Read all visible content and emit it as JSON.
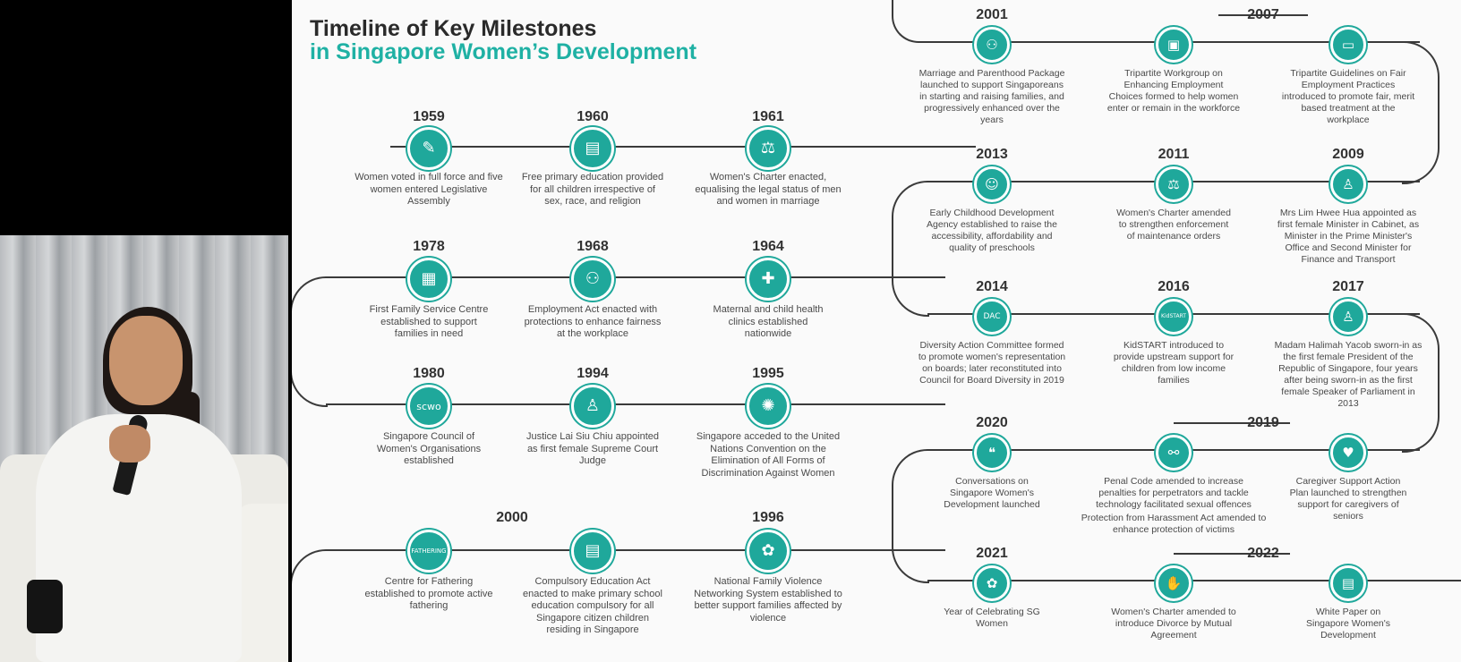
{
  "title": {
    "line1": "Timeline of Key Milestones",
    "line2": "in Singapore Women’s Development",
    "accent": "#1fb1a4"
  },
  "milestones": [
    {
      "year": "1959",
      "icon": "voting-icon",
      "glyph": "✎",
      "desc": "Women voted in full force and five women entered Legislative Assembly"
    },
    {
      "year": "1960",
      "icon": "book-icon",
      "glyph": "▤",
      "desc": "Free primary education provided for all children irrespective of sex, race, and religion"
    },
    {
      "year": "1961",
      "icon": "scales-icon",
      "glyph": "⚖",
      "desc": "Women's Charter enacted, equalising the legal status of men and women in marriage"
    },
    {
      "year": "1978",
      "icon": "building-icon",
      "glyph": "▦",
      "desc": "First Family Service Centre established to support families in need"
    },
    {
      "year": "1968",
      "icon": "workers-icon",
      "glyph": "⚇",
      "desc": "Employment Act enacted with protections to enhance fairness at the workplace"
    },
    {
      "year": "1964",
      "icon": "clinic-icon",
      "glyph": "✚",
      "desc": "Maternal and child health clinics established nationwide"
    },
    {
      "year": "1980",
      "icon": "scwo-logo-icon",
      "glyph": "scwo",
      "desc": "Singapore Council of Women's Organisations established"
    },
    {
      "year": "1994",
      "icon": "judge-icon",
      "glyph": "♙",
      "desc": "Justice Lai Siu Chiu appointed as first female Supreme Court Judge"
    },
    {
      "year": "1995",
      "icon": "un-emblem-icon",
      "glyph": "✺",
      "desc": "Singapore acceded to the United Nations Convention on the Elimination of All Forms of Discrimination Against Women"
    },
    {
      "year": "2000",
      "icon": "fathering-logo-icon",
      "glyph": "FATHERING",
      "desc": "Centre for Fathering established to promote active fathering"
    },
    {
      "year": "",
      "icon": "open-book-icon",
      "glyph": "▤",
      "desc": "Compulsory Education Act enacted to make primary school education compulsory for all Singapore citizen children residing in Singapore"
    },
    {
      "year": "1996",
      "icon": "flower-icon",
      "glyph": "✿",
      "desc": "National Family Violence Networking System established to better support families affected by violence"
    },
    {
      "year": "2001",
      "icon": "family-icon",
      "glyph": "⚇",
      "desc": "Marriage and Parenthood Package launched to support Singaporeans in starting and raising families, and progressively enhanced over the years"
    },
    {
      "year": "2007",
      "icon": "briefcase-icon",
      "glyph": "▣",
      "desc": "Tripartite Workgroup on Enhancing Employment Choices formed to help women enter or remain in the workforce"
    },
    {
      "year": "",
      "icon": "presentation-icon",
      "glyph": "▭",
      "desc": "Tripartite Guidelines on Fair Employment Practices introduced to promote fair, merit based treatment at the workplace"
    },
    {
      "year": "2013",
      "icon": "children-icon",
      "glyph": "☺",
      "desc": "Early Childhood Development Agency established to raise the accessibility, affordability and quality of preschools"
    },
    {
      "year": "2011",
      "icon": "scales-icon-2",
      "glyph": "⚖",
      "desc": "Women's Charter amended to strengthen enforcement of maintenance orders"
    },
    {
      "year": "2009",
      "icon": "podium-icon",
      "glyph": "♙",
      "desc": "Mrs Lim Hwee Hua appointed as first female Minister in Cabinet, as Minister in the Prime Minister's Office and Second Minister for Finance and Transport"
    },
    {
      "year": "2014",
      "icon": "dac-logo-icon",
      "glyph": "DAC",
      "desc": "Diversity Action Committee formed to promote women's representation on boards; later reconstituted into Council for Board Diversity in 2019"
    },
    {
      "year": "2016",
      "icon": "kidstart-logo-icon",
      "glyph": "KidSTART",
      "desc": "KidSTART introduced to provide upstream support for children from low income families"
    },
    {
      "year": "2017",
      "icon": "podium-icon-2",
      "glyph": "♙",
      "desc": "Madam Halimah Yacob sworn-in as the first female President of the Republic of Singapore, four years after being sworn-in as the first female Speaker of Parliament in 2013"
    },
    {
      "year": "2020",
      "icon": "speech-bubble-icon",
      "glyph": "❝",
      "desc": "Conversations on Singapore Women's Development launched"
    },
    {
      "year": "2019",
      "icon": "handcuffs-icon",
      "glyph": "⚯",
      "desc": "Penal Code amended to increase penalties for perpetrators and tackle technology facilitated sexual offences"
    },
    {
      "year": "",
      "icon": "caring-hands-icon",
      "glyph": "♥",
      "desc": "Caregiver Support Action Plan launched to strengthen support for caregivers of seniors"
    },
    {
      "year": "2021",
      "icon": "orchid-icon",
      "glyph": "✿",
      "desc": "Year of Celebrating SG Women"
    },
    {
      "year": "2022",
      "icon": "handshake-icon",
      "glyph": "✋",
      "desc": "Women's Charter amended to introduce Divorce by Mutual Agreement"
    },
    {
      "year": "",
      "icon": "document-icon",
      "glyph": "▤",
      "desc": "White Paper on Singapore Women's Development"
    }
  ],
  "extra_note": "Protection from Harassment Act amended to enhance protection of victims"
}
